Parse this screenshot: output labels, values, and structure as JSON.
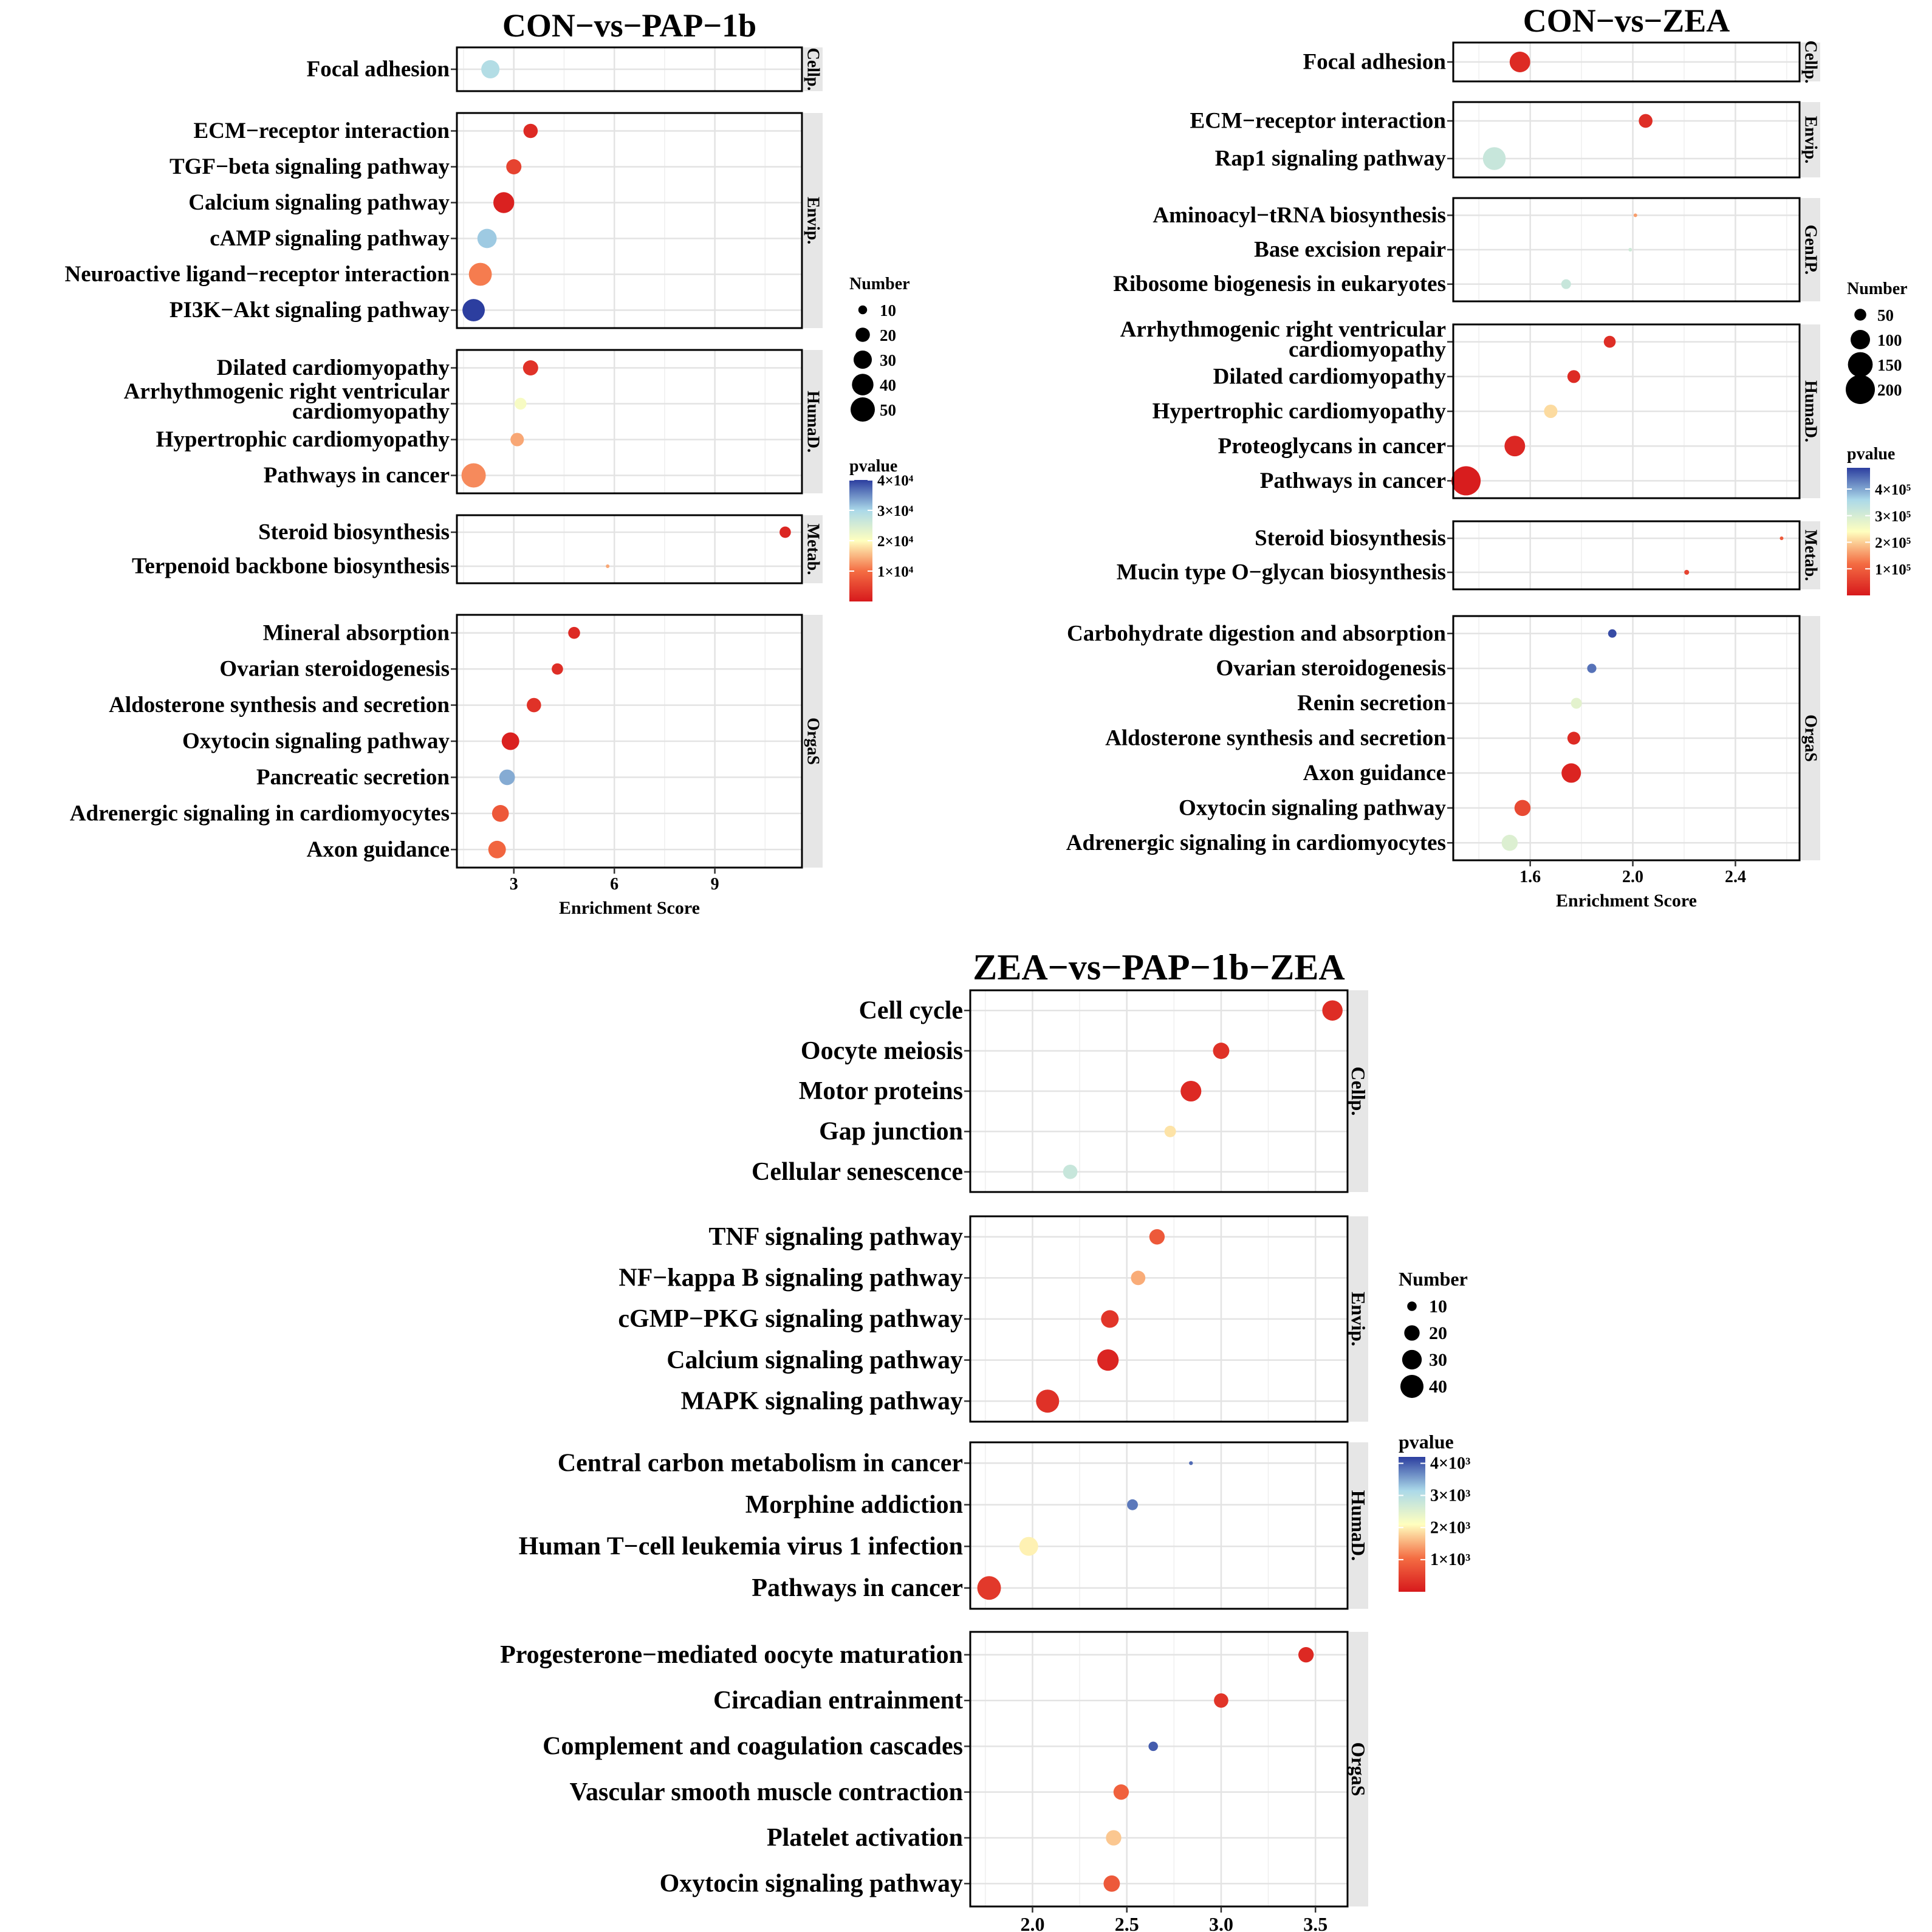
{
  "chart_data": [
    {
      "type": "scatter",
      "title": "CON−vs−PAP−1b",
      "xlabel": "Enrichment Score",
      "ylabel": "",
      "xlim": [
        1.3,
        11.6
      ],
      "xticks": [
        3,
        6,
        9
      ],
      "tick_labels": [
        "3",
        "6",
        "9"
      ],
      "grid": true,
      "legend_position": "right",
      "size_legend": {
        "title": "Number",
        "values": [
          10,
          20,
          30,
          40,
          50
        ],
        "labels": [
          "10",
          "20",
          "30",
          "40",
          "50"
        ]
      },
      "color_legend": {
        "title": "pvalue",
        "min": 0,
        "max": 40000,
        "ticks": [
          10000,
          20000,
          30000,
          40000
        ],
        "labels": [
          "1×10⁴",
          "2×10⁴",
          "3×10⁴",
          "4×10⁴"
        ]
      },
      "facets": [
        {
          "label": "Cellp.",
          "terms": [
            {
              "name": "Focal adhesion",
              "x": 2.3,
              "number": 30,
              "pvalue": 29000
            }
          ]
        },
        {
          "label": "Envip.",
          "terms": [
            {
              "name": "ECM−receptor interaction",
              "x": 3.5,
              "number": 20,
              "pvalue": 2000
            },
            {
              "name": "TGF−beta signaling pathway",
              "x": 3.0,
              "number": 22,
              "pvalue": 5000
            },
            {
              "name": "Calcium signaling pathway",
              "x": 2.7,
              "number": 38,
              "pvalue": 1000
            },
            {
              "name": "cAMP signaling pathway",
              "x": 2.2,
              "number": 33,
              "pvalue": 31000
            },
            {
              "name": "Neuroactive ligand−receptor interaction",
              "x": 2.0,
              "number": 45,
              "pvalue": 11000
            },
            {
              "name": "PI3K−Akt signaling pathway",
              "x": 1.8,
              "number": 43,
              "pvalue": 40000
            }
          ]
        },
        {
          "label": "HumaD.",
          "terms": [
            {
              "name": "Dilated cardiomyopathy",
              "x": 3.5,
              "number": 22,
              "pvalue": 3000
            },
            {
              "name": "Arrhythmogenic right ventricular cardiomyopathy",
              "x": 3.2,
              "number": 15,
              "pvalue": 21000
            },
            {
              "name": "Hypertrophic cardiomyopathy",
              "x": 3.1,
              "number": 18,
              "pvalue": 14000
            },
            {
              "name": "Pathways in cancer",
              "x": 1.8,
              "number": 50,
              "pvalue": 12000
            }
          ]
        },
        {
          "label": "Metab.",
          "terms": [
            {
              "name": "Steroid biosynthesis",
              "x": 11.1,
              "number": 14,
              "pvalue": 1500
            },
            {
              "name": "Terpenoid backbone biosynthesis",
              "x": 5.8,
              "number": 4,
              "pvalue": 14000
            }
          ]
        },
        {
          "label": "OrgaS",
          "terms": [
            {
              "name": "Mineral absorption",
              "x": 4.8,
              "number": 15,
              "pvalue": 2000
            },
            {
              "name": "Ovarian steroidogenesis",
              "x": 4.3,
              "number": 14,
              "pvalue": 2500
            },
            {
              "name": "Aldosterone synthesis and secretion",
              "x": 3.6,
              "number": 20,
              "pvalue": 3000
            },
            {
              "name": "Oxytocin signaling pathway",
              "x": 2.9,
              "number": 28,
              "pvalue": 1000
            },
            {
              "name": "Pancreatic secretion",
              "x": 2.8,
              "number": 23,
              "pvalue": 33000
            },
            {
              "name": "Adrenergic signaling in cardiomyocytes",
              "x": 2.6,
              "number": 26,
              "pvalue": 7500
            },
            {
              "name": "Axon guidance",
              "x": 2.5,
              "number": 28,
              "pvalue": 9000
            }
          ]
        }
      ]
    },
    {
      "type": "scatter",
      "title": "CON−vs−ZEA",
      "xlabel": "Enrichment Score",
      "ylabel": "",
      "xlim": [
        1.3,
        2.65
      ],
      "xticks": [
        1.6,
        2.0,
        2.4
      ],
      "tick_labels": [
        "1.6",
        "2.0",
        "2.4"
      ],
      "grid": true,
      "legend_position": "right",
      "size_legend": {
        "title": "Number",
        "values": [
          50,
          100,
          150,
          200
        ],
        "labels": [
          "50",
          "100",
          "150",
          "200"
        ]
      },
      "color_legend": {
        "title": "pvalue",
        "min": 0,
        "max": 480000,
        "ticks": [
          100000,
          200000,
          300000,
          400000
        ],
        "labels": [
          "1×10⁵",
          "2×10⁵",
          "3×10⁵",
          "4×10⁵"
        ]
      },
      "facets": [
        {
          "label": "Cellp.",
          "terms": [
            {
              "name": "Focal adhesion",
              "x": 1.56,
              "number": 110,
              "pvalue": 25000
            }
          ]
        },
        {
          "label": "Envip.",
          "terms": [
            {
              "name": "ECM−receptor interaction",
              "x": 2.05,
              "number": 60,
              "pvalue": 30000
            },
            {
              "name": "Rap1 signaling pathway",
              "x": 1.46,
              "number": 130,
              "pvalue": 320000
            }
          ]
        },
        {
          "label": "GenIP.",
          "terms": [
            {
              "name": "Aminoacyl−tRNA biosynthesis",
              "x": 2.01,
              "number": 20,
              "pvalue": 160000
            },
            {
              "name": "Base excision repair",
              "x": 1.99,
              "number": 18,
              "pvalue": 310000
            },
            {
              "name": "Ribosome biogenesis in eukaryotes",
              "x": 1.74,
              "number": 40,
              "pvalue": 320000
            }
          ]
        },
        {
          "label": "HumaD.",
          "terms": [
            {
              "name": "Arrhythmogenic right ventricular cardiomyopathy",
              "x": 1.91,
              "number": 50,
              "pvalue": 30000
            },
            {
              "name": "Dilated cardiomyopathy",
              "x": 1.77,
              "number": 55,
              "pvalue": 25000
            },
            {
              "name": "Hypertrophic cardiomyopathy",
              "x": 1.68,
              "number": 58,
              "pvalue": 210000
            },
            {
              "name": "Proteoglycans in cancer",
              "x": 1.54,
              "number": 110,
              "pvalue": 20000
            },
            {
              "name": "Pathways in cancer",
              "x": 1.35,
              "number": 200,
              "pvalue": 5000
            }
          ]
        },
        {
          "label": "Metab.",
          "terms": [
            {
              "name": "Steroid biosynthesis",
              "x": 2.58,
              "number": 6,
              "pvalue": 90000
            },
            {
              "name": "Mucin type O−glycan biosynthesis",
              "x": 2.21,
              "number": 25,
              "pvalue": 60000
            }
          ]
        },
        {
          "label": "OrgaS",
          "terms": [
            {
              "name": "Carbohydrate digestion and absorption",
              "x": 1.92,
              "number": 35,
              "pvalue": 470000
            },
            {
              "name": "Ovarian steroidogenesis",
              "x": 1.84,
              "number": 38,
              "pvalue": 440000
            },
            {
              "name": "Renin secretion",
              "x": 1.78,
              "number": 45,
              "pvalue": 280000
            },
            {
              "name": "Aldosterone synthesis and secretion",
              "x": 1.77,
              "number": 55,
              "pvalue": 25000
            },
            {
              "name": "Axon guidance",
              "x": 1.76,
              "number": 100,
              "pvalue": 15000
            },
            {
              "name": "Oxytocin signaling pathway",
              "x": 1.57,
              "number": 75,
              "pvalue": 70000
            },
            {
              "name": "Adrenergic signaling in cardiomyocytes",
              "x": 1.52,
              "number": 75,
              "pvalue": 290000
            }
          ]
        }
      ]
    },
    {
      "type": "scatter",
      "title": "ZEA−vs−PAP−1b−ZEA",
      "xlabel": "Enrichment Score",
      "ylabel": "",
      "xlim": [
        1.67,
        3.67
      ],
      "xticks": [
        2.0,
        2.5,
        3.0,
        3.5
      ],
      "tick_labels": [
        "2.0",
        "2.5",
        "3.0",
        "3.5"
      ],
      "grid": true,
      "legend_position": "right",
      "size_legend": {
        "title": "Number",
        "values": [
          10,
          20,
          30,
          40
        ],
        "labels": [
          "10",
          "20",
          "30",
          "40"
        ]
      },
      "color_legend": {
        "title": "pvalue",
        "min": 0,
        "max": 4200,
        "ticks": [
          1000,
          2000,
          3000,
          4000
        ],
        "labels": [
          "1×10³",
          "2×10³",
          "3×10³",
          "4×10³"
        ]
      },
      "facets": [
        {
          "label": "Cellp.",
          "terms": [
            {
              "name": "Cell cycle",
              "x": 3.59,
              "number": 32,
              "pvalue": 250
            },
            {
              "name": "Oocyte meiosis",
              "x": 3.0,
              "number": 22,
              "pvalue": 300
            },
            {
              "name": "Motor proteins",
              "x": 2.84,
              "number": 33,
              "pvalue": 200
            },
            {
              "name": "Gap junction",
              "x": 2.73,
              "number": 13,
              "pvalue": 1900
            },
            {
              "name": "Cellular senescence",
              "x": 2.2,
              "number": 18,
              "pvalue": 2800
            }
          ]
        },
        {
          "label": "Envip.",
          "terms": [
            {
              "name": "TNF signaling pathway",
              "x": 2.66,
              "number": 20,
              "pvalue": 800
            },
            {
              "name": "NF−kappa B signaling pathway",
              "x": 2.56,
              "number": 18,
              "pvalue": 1500
            },
            {
              "name": "cGMP−PKG signaling pathway",
              "x": 2.41,
              "number": 25,
              "pvalue": 350
            },
            {
              "name": "Calcium signaling pathway",
              "x": 2.4,
              "number": 35,
              "pvalue": 150
            },
            {
              "name": "MAPK signaling pathway",
              "x": 2.08,
              "number": 40,
              "pvalue": 300
            }
          ]
        },
        {
          "label": "HumaD.",
          "terms": [
            {
              "name": "Central carbon metabolism in cancer",
              "x": 2.84,
              "number": 5,
              "pvalue": 3900
            },
            {
              "name": "Morphine addiction",
              "x": 2.53,
              "number": 12,
              "pvalue": 3800
            },
            {
              "name": "Human T−cell leukemia virus 1 infection",
              "x": 1.98,
              "number": 28,
              "pvalue": 2000
            },
            {
              "name": "Pathways in cancer",
              "x": 1.77,
              "number": 48,
              "pvalue": 400
            }
          ]
        },
        {
          "label": "OrgaS",
          "terms": [
            {
              "name": "Progesterone−mediated oocyte maturation",
              "x": 3.45,
              "number": 20,
              "pvalue": 200
            },
            {
              "name": "Circadian entrainment",
              "x": 3.0,
              "number": 18,
              "pvalue": 350
            },
            {
              "name": "Complement and coagulation cascades",
              "x": 2.64,
              "number": 10,
              "pvalue": 4000
            },
            {
              "name": "Vascular smooth muscle contraction",
              "x": 2.47,
              "number": 20,
              "pvalue": 900
            },
            {
              "name": "Platelet activation",
              "x": 2.43,
              "number": 20,
              "pvalue": 1700
            },
            {
              "name": "Oxytocin signaling pathway",
              "x": 2.42,
              "number": 22,
              "pvalue": 800
            }
          ]
        }
      ]
    }
  ]
}
